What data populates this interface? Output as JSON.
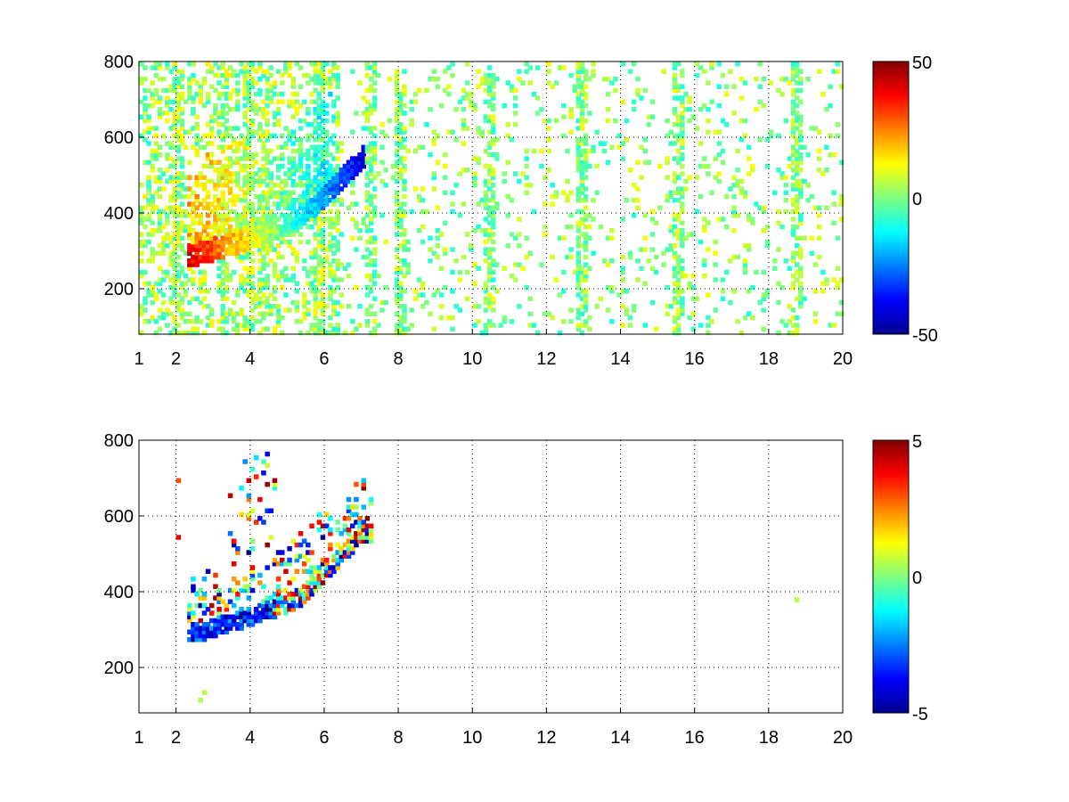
{
  "chart_data": [
    {
      "type": "heatmap",
      "title": "",
      "xlabel": "",
      "ylabel": "",
      "xlim": [
        1,
        20
      ],
      "ylim": [
        80,
        800
      ],
      "xticks": [
        1,
        2,
        4,
        6,
        8,
        10,
        12,
        14,
        16,
        18,
        20
      ],
      "yticks": [
        200,
        400,
        600,
        800
      ],
      "grid": true,
      "colormap": "jet",
      "colorbar": {
        "min": -50,
        "max": 50,
        "ticks": [
          50,
          0,
          -50
        ]
      },
      "features": {
        "noise_x_range": [
          1,
          20
        ],
        "dense_noise_x_range": [
          1,
          6
        ],
        "ridge": {
          "x": [
            2.3,
            2.8,
            3.3,
            3.8,
            4.3,
            4.8,
            5.3,
            5.7,
            6.2,
            6.7,
            7.0
          ],
          "y": [
            285,
            295,
            310,
            325,
            345,
            360,
            385,
            420,
            470,
            520,
            550
          ],
          "value_start": 40,
          "value_end": -40
        },
        "vertical_stripes_x": [
          2.0,
          3.2,
          3.9,
          4.3,
          5.8,
          6.2,
          7.2,
          8.0,
          10.4,
          12.9,
          15.5,
          18.7
        ]
      }
    },
    {
      "type": "heatmap",
      "title": "",
      "xlabel": "",
      "ylabel": "",
      "xlim": [
        1,
        20
      ],
      "ylim": [
        80,
        800
      ],
      "xticks": [
        1,
        2,
        4,
        6,
        8,
        10,
        12,
        14,
        16,
        18,
        20
      ],
      "yticks": [
        200,
        400,
        600,
        800
      ],
      "grid": true,
      "colormap": "jet",
      "colorbar": {
        "min": -5,
        "max": 5,
        "ticks": [
          5,
          0,
          -5
        ]
      },
      "features": {
        "cluster_x_range": [
          2.3,
          7.2
        ],
        "ridge": {
          "x": [
            2.3,
            2.8,
            3.3,
            3.8,
            4.3,
            4.8,
            5.3,
            5.7,
            6.2,
            6.7,
            7.0
          ],
          "y": [
            285,
            295,
            310,
            325,
            345,
            360,
            385,
            420,
            470,
            520,
            550
          ]
        },
        "isolated_point": {
          "x": 18.7,
          "y": 380,
          "value": 0.5
        }
      }
    }
  ]
}
